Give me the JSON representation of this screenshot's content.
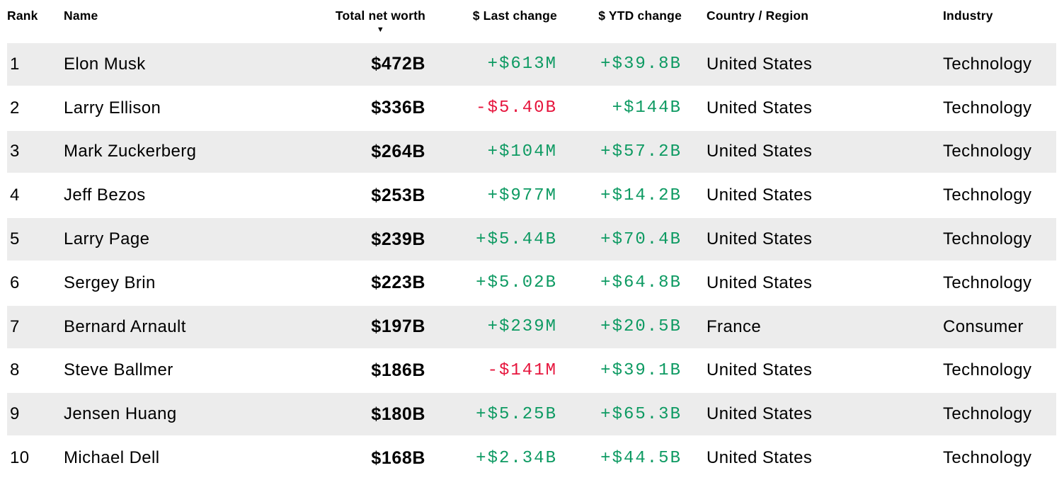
{
  "table": {
    "columns": [
      {
        "key": "rank",
        "label": "Rank",
        "align": "left"
      },
      {
        "key": "name",
        "label": "Name",
        "align": "left"
      },
      {
        "key": "net_worth",
        "label": "Total net worth",
        "align": "right",
        "sorted": "desc"
      },
      {
        "key": "last_change",
        "label": "$ Last change",
        "align": "right"
      },
      {
        "key": "ytd_change",
        "label": "$ YTD change",
        "align": "right"
      },
      {
        "key": "country",
        "label": "Country / Region",
        "align": "left"
      },
      {
        "key": "industry",
        "label": "Industry",
        "align": "left"
      }
    ],
    "sort_icon": "▼",
    "rows": [
      {
        "rank": "1",
        "name": "Elon Musk",
        "net_worth": "$472B",
        "last_change": "+$613M",
        "ytd_change": "+$39.8B",
        "country": "United States",
        "industry": "Technology"
      },
      {
        "rank": "2",
        "name": "Larry Ellison",
        "net_worth": "$336B",
        "last_change": "-$5.40B",
        "ytd_change": "+$144B",
        "country": "United States",
        "industry": "Technology"
      },
      {
        "rank": "3",
        "name": "Mark Zuckerberg",
        "net_worth": "$264B",
        "last_change": "+$104M",
        "ytd_change": "+$57.2B",
        "country": "United States",
        "industry": "Technology"
      },
      {
        "rank": "4",
        "name": "Jeff Bezos",
        "net_worth": "$253B",
        "last_change": "+$977M",
        "ytd_change": "+$14.2B",
        "country": "United States",
        "industry": "Technology"
      },
      {
        "rank": "5",
        "name": "Larry Page",
        "net_worth": "$239B",
        "last_change": "+$5.44B",
        "ytd_change": "+$70.4B",
        "country": "United States",
        "industry": "Technology"
      },
      {
        "rank": "6",
        "name": "Sergey Brin",
        "net_worth": "$223B",
        "last_change": "+$5.02B",
        "ytd_change": "+$64.8B",
        "country": "United States",
        "industry": "Technology"
      },
      {
        "rank": "7",
        "name": "Bernard Arnault",
        "net_worth": "$197B",
        "last_change": "+$239M",
        "ytd_change": "+$20.5B",
        "country": "France",
        "industry": "Consumer"
      },
      {
        "rank": "8",
        "name": "Steve Ballmer",
        "net_worth": "$186B",
        "last_change": "-$141M",
        "ytd_change": "+$39.1B",
        "country": "United States",
        "industry": "Technology"
      },
      {
        "rank": "9",
        "name": "Jensen Huang",
        "net_worth": "$180B",
        "last_change": "+$5.25B",
        "ytd_change": "+$65.3B",
        "country": "United States",
        "industry": "Technology"
      },
      {
        "rank": "10",
        "name": "Michael Dell",
        "net_worth": "$168B",
        "last_change": "+$2.34B",
        "ytd_change": "+$44.5B",
        "country": "United States",
        "industry": "Technology"
      }
    ]
  },
  "colors": {
    "positive": "#0d9a62",
    "negative": "#e6143c",
    "stripe": "#ececec",
    "text": "#000000"
  }
}
